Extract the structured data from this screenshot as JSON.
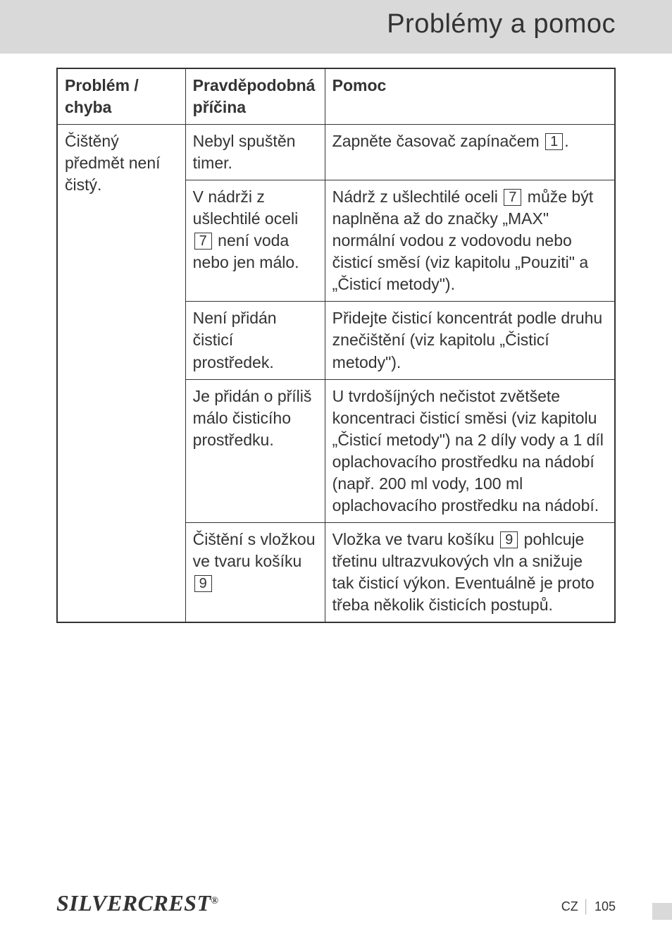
{
  "header": {
    "title": "Problémy a pomoc"
  },
  "table": {
    "headers": {
      "col1": "Problém / chyba",
      "col2": "Pravděpodobná příčina",
      "col3": "Pomoc"
    },
    "problem": "Čištěný předmět není čistý.",
    "rows": [
      {
        "cause_pre": "Nebyl spuštěn timer.",
        "help_pre": "Zapněte časovač zapínačem ",
        "help_ref": "1",
        "help_post": "."
      },
      {
        "cause_pre": "V nádrži z ušlechtilé oceli ",
        "cause_ref": "7",
        "cause_post": " není voda nebo jen málo.",
        "help_pre": "Nádrž z ušlechtilé oceli ",
        "help_ref": "7",
        "help_post": " může být naplněna až do značky „MAX\" normální vodou z vodovodu nebo čisticí směsí (viz kapitolu „Pouziti\" a „Čisticí metody\")."
      },
      {
        "cause_pre": "Není přidán čisticí prostředek.",
        "help_pre": "Přidejte čisticí koncentrát podle druhu znečištění (viz kapitolu „Čisticí metody\")."
      },
      {
        "cause_pre": "Je přidán o příliš málo čisticího prostředku.",
        "help_pre": "U tvrdošíjných nečistot zvětšete koncentraci čisticí směsi (viz kapitolu „Čisticí metody\") na 2 díly vody a 1 díl oplachovacího prostředku na nádobí (např. 200 ml vody, 100 ml oplachovacího prostředku na nádobí."
      },
      {
        "cause_pre": "Čištění s vložkou ve tvaru košíku ",
        "cause_ref": "9",
        "cause_post": "",
        "help_pre": "Vložka ve tvaru košíku ",
        "help_ref": "9",
        "help_post": " pohlcuje třetinu ultrazvukových vln a snižuje tak čisticí výkon. Eventuálně je proto třeba několik čisticích postupů."
      }
    ]
  },
  "footer": {
    "brand_left": "SILVER",
    "brand_right": "CREST",
    "reg": "®",
    "country": "CZ",
    "page": "105"
  }
}
